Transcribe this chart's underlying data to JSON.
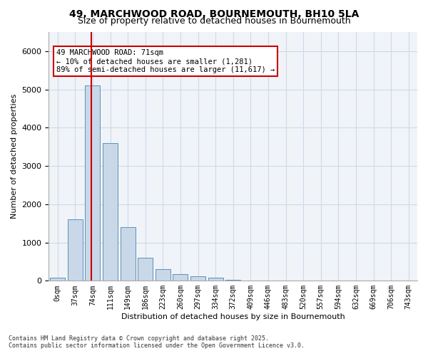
{
  "title_line1": "49, MARCHWOOD ROAD, BOURNEMOUTH, BH10 5LA",
  "title_line2": "Size of property relative to detached houses in Bournemouth",
  "xlabel": "Distribution of detached houses by size in Bournemouth",
  "ylabel": "Number of detached properties",
  "bar_labels": [
    "0sqm",
    "37sqm",
    "74sqm",
    "111sqm",
    "149sqm",
    "186sqm",
    "223sqm",
    "260sqm",
    "297sqm",
    "334sqm",
    "372sqm",
    "409sqm",
    "446sqm",
    "483sqm",
    "520sqm",
    "557sqm",
    "594sqm",
    "632sqm",
    "669sqm",
    "706sqm",
    "743sqm"
  ],
  "bar_heights": [
    75,
    1600,
    5100,
    3600,
    1400,
    600,
    300,
    175,
    125,
    75,
    30,
    15,
    8,
    4,
    2,
    1,
    0,
    0,
    0,
    0,
    0
  ],
  "bar_color": "#c8d8e8",
  "bar_edge_color": "#6090b8",
  "grid_color": "#d0d8e8",
  "background_color": "#f0f4f8",
  "red_line_x": 1.92,
  "annotation_text": "49 MARCHWOOD ROAD: 71sqm\n← 10% of detached houses are smaller (1,281)\n89% of semi-detached houses are larger (11,617) →",
  "annotation_box_color": "#ffffff",
  "annotation_border_color": "#cc0000",
  "ylim": [
    0,
    6500
  ],
  "footer_line1": "Contains HM Land Registry data © Crown copyright and database right 2025.",
  "footer_line2": "Contains public sector information licensed under the Open Government Licence v3.0."
}
